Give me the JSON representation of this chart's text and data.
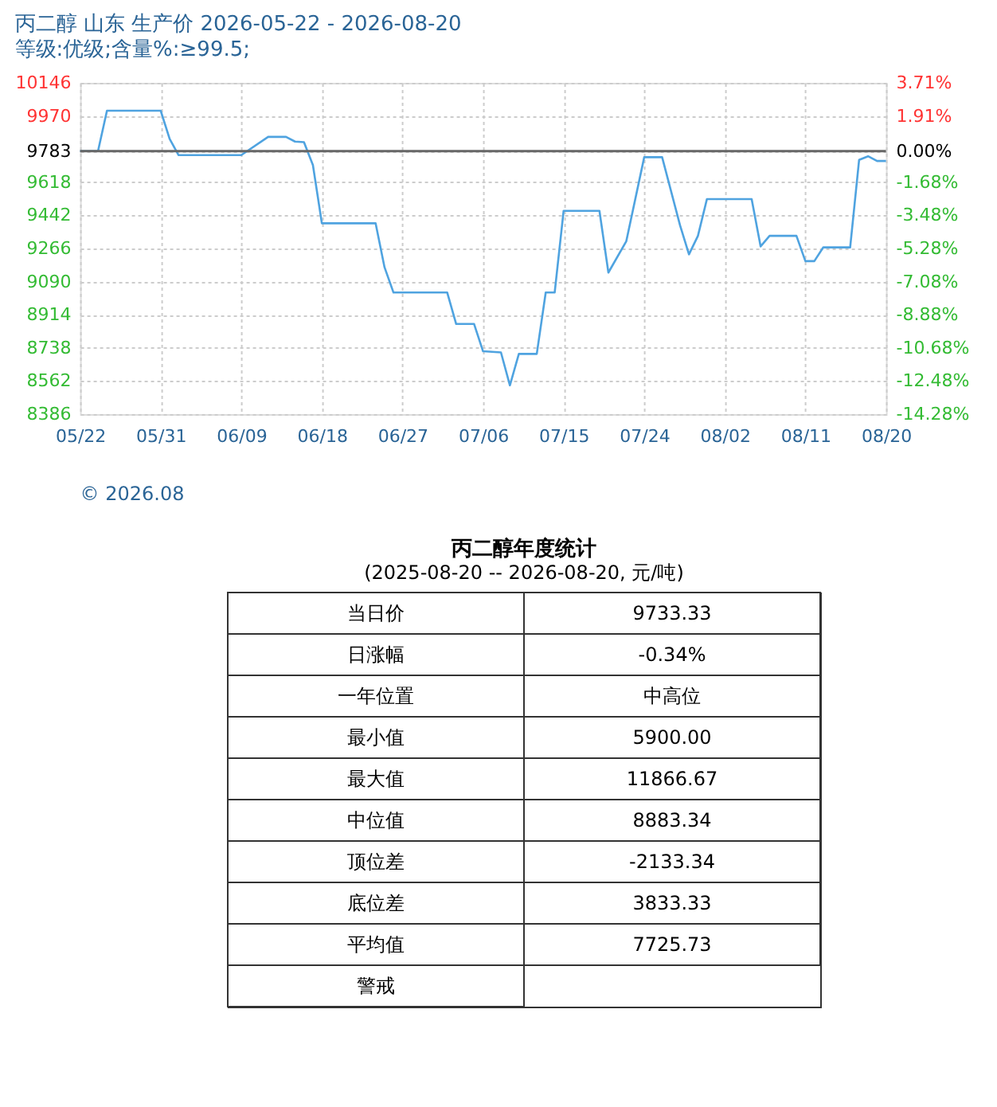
{
  "chart_data": [
    {
      "type": "line",
      "title": "丙二醇 山东 生产价 2026-05-22 - 2026-08-20",
      "subtitle": "等级:优级;含量%:≥99.5;",
      "x": [
        "2026-05-22",
        "2026-05-24",
        "2026-05-25",
        "2026-05-31",
        "2026-06-01",
        "2026-06-02",
        "2026-06-09",
        "2026-06-12",
        "2026-06-14",
        "2026-06-15",
        "2026-06-16",
        "2026-06-17",
        "2026-06-18",
        "2026-06-24",
        "2026-06-25",
        "2026-06-26",
        "2026-07-02",
        "2026-07-03",
        "2026-07-05",
        "2026-07-06",
        "2026-07-08",
        "2026-07-09",
        "2026-07-10",
        "2026-07-12",
        "2026-07-13",
        "2026-07-14",
        "2026-07-15",
        "2026-07-19",
        "2026-07-20",
        "2026-07-22",
        "2026-07-24",
        "2026-07-26",
        "2026-07-28",
        "2026-07-29",
        "2026-07-30",
        "2026-07-31",
        "2026-08-05",
        "2026-08-06",
        "2026-08-07",
        "2026-08-10",
        "2026-08-11",
        "2026-08-12",
        "2026-08-13",
        "2026-08-16",
        "2026-08-17",
        "2026-08-18",
        "2026-08-19",
        "2026-08-20"
      ],
      "series": [
        {
          "color": "#4fa3e0",
          "values": [
            9783,
            9783,
            9998,
            9998,
            9848,
            9762,
            9762,
            9859,
            9859,
            9834,
            9831,
            9709,
            9400,
            9400,
            9166,
            9032,
            9032,
            8865,
            8865,
            8720,
            8714,
            8539,
            8706,
            8706,
            9032,
            9032,
            9466,
            9466,
            9138,
            9305,
            9751,
            9751,
            9389,
            9235,
            9333,
            9528,
            9528,
            9277,
            9333,
            9333,
            9199,
            9199,
            9272,
            9272,
            9737,
            9756,
            9731,
            9731
          ]
        }
      ],
      "xlim": [
        "2026-05-22",
        "2026-08-20"
      ],
      "xticks": [
        {
          "value": "2026-05-22",
          "label": "05/22"
        },
        {
          "value": "2026-05-31",
          "label": "05/31"
        },
        {
          "value": "2026-06-09",
          "label": "06/09"
        },
        {
          "value": "2026-06-18",
          "label": "06/18"
        },
        {
          "value": "2026-06-27",
          "label": "06/27"
        },
        {
          "value": "2026-07-06",
          "label": "07/06"
        },
        {
          "value": "2026-07-15",
          "label": "07/15"
        },
        {
          "value": "2026-07-24",
          "label": "07/24"
        },
        {
          "value": "2026-08-02",
          "label": "08/02"
        },
        {
          "value": "2026-08-11",
          "label": "08/11"
        },
        {
          "value": "2026-08-20",
          "label": "08/20"
        }
      ],
      "ylim": [
        8386,
        10146
      ],
      "yticks": [
        8386,
        8562,
        8738,
        8914,
        9090,
        9266,
        9442,
        9618,
        9783,
        9970,
        10146
      ],
      "y2lim": [
        -14.28,
        3.71
      ],
      "y2ticks": [
        {
          "value": -14.28,
          "label": "-14.28%"
        },
        {
          "value": -12.48,
          "label": "-12.48%"
        },
        {
          "value": -10.68,
          "label": "-10.68%"
        },
        {
          "value": -8.88,
          "label": "-8.88%"
        },
        {
          "value": -7.08,
          "label": "-7.08%"
        },
        {
          "value": -5.28,
          "label": "-5.28%"
        },
        {
          "value": -3.48,
          "label": "-3.48%"
        },
        {
          "value": -1.68,
          "label": "-1.68%"
        },
        {
          "value": 0,
          "label": "0.00%"
        },
        {
          "value": 1.91,
          "label": "1.91%"
        },
        {
          "value": 3.71,
          "label": "3.71%"
        }
      ],
      "ref_lines": [
        {
          "axis": "y",
          "value": 9783,
          "color": "#666666"
        }
      ],
      "grid": true,
      "marker": "none",
      "line_style": "solid",
      "annotations": [
        "© 2026.08"
      ]
    },
    {
      "type": "other",
      "title": "丙二醇年度统计",
      "subtitle": "(2025-08-20 -- 2026-08-20, 元/吨)",
      "categories": [
        "当日价",
        "日涨幅",
        "一年位置",
        "最小值",
        "最大值",
        "中位值",
        "顶位差",
        "底位差",
        "平均值",
        "警戒"
      ],
      "value_labels": [
        "9733.33",
        "-0.34%",
        "中高位",
        "5900.00",
        "11866.67",
        "8883.34",
        "-2133.34",
        "3833.33",
        "7725.73",
        null
      ]
    }
  ]
}
